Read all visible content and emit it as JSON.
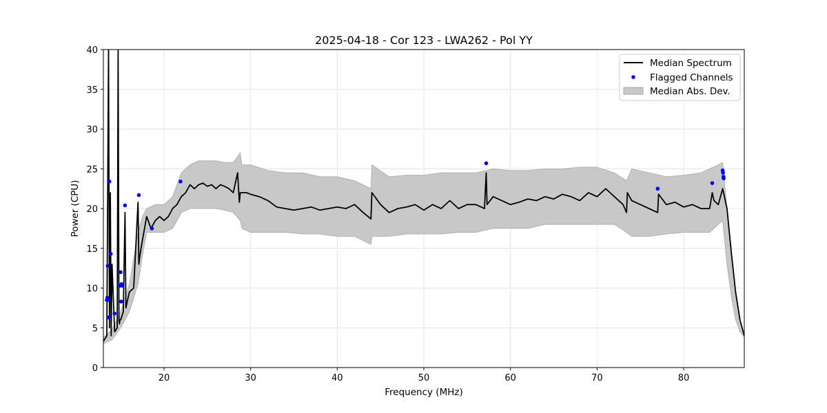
{
  "chart_data": {
    "type": "line",
    "title": "2025-04-18 - Cor 123 - LWA262 - Pol YY",
    "xlabel": "Frequency (MHz)",
    "ylabel": "Power (CPU)",
    "xlim": [
      13,
      87
    ],
    "ylim": [
      0,
      40
    ],
    "xticks": [
      20,
      30,
      40,
      50,
      60,
      70,
      80
    ],
    "yticks": [
      0,
      5,
      10,
      15,
      20,
      25,
      30,
      35,
      40
    ],
    "grid": true,
    "legend": {
      "location": "top-right",
      "entries": [
        "Median Spectrum",
        "Flagged Channels",
        "Median Abs. Dev."
      ]
    },
    "colors": {
      "median": "#000000",
      "flagged": "#0000ff",
      "mad": "#c8c8c8"
    },
    "series": [
      {
        "name": "Median Spectrum",
        "x": [
          13.0,
          13.4,
          13.6,
          13.7,
          13.8,
          13.9,
          14.0,
          14.3,
          14.6,
          14.7,
          14.8,
          14.85,
          14.9,
          15.0,
          15.3,
          15.5,
          15.6,
          15.7,
          16.0,
          16.5,
          17.0,
          17.1,
          17.2,
          17.5,
          18.0,
          18.5,
          19.0,
          19.5,
          20.0,
          20.5,
          21.0,
          21.5,
          22.0,
          22.5,
          23.0,
          23.5,
          24.0,
          24.5,
          25.0,
          25.5,
          26.0,
          26.5,
          27.0,
          27.5,
          28.0,
          28.5,
          28.7,
          28.8,
          29.5,
          30.0,
          31.0,
          32.0,
          33.0,
          34.0,
          35.0,
          36.0,
          37.0,
          38.0,
          39.0,
          40.0,
          41.0,
          42.0,
          43.0,
          43.9,
          44.0,
          45.0,
          46.0,
          47.0,
          48.0,
          49.0,
          50.0,
          51.0,
          52.0,
          53.0,
          54.0,
          55.0,
          56.0,
          57.0,
          57.2,
          57.3,
          58.0,
          59.0,
          60.0,
          61.0,
          62.0,
          63.0,
          64.0,
          65.0,
          66.0,
          67.0,
          68.0,
          69.0,
          70.0,
          71.0,
          72.0,
          73.0,
          73.4,
          73.5,
          74.0,
          75.0,
          76.0,
          77.0,
          77.1,
          78.0,
          79.0,
          80.0,
          81.0,
          82.0,
          83.0,
          83.3,
          83.5,
          84.0,
          84.5,
          85.0,
          85.5,
          86.0,
          86.5,
          87.0
        ],
        "y": [
          3.3,
          4.0,
          40.0,
          5.0,
          22.0,
          4.0,
          13.0,
          4.5,
          5.0,
          40.0,
          6.0,
          5.5,
          6.0,
          6.0,
          7.0,
          19.5,
          7.5,
          8.0,
          9.5,
          10.0,
          20.8,
          13.0,
          14.0,
          16.0,
          19.0,
          17.5,
          18.5,
          19.0,
          18.5,
          19.0,
          20.0,
          20.5,
          21.5,
          22.0,
          23.0,
          22.5,
          23.0,
          23.2,
          22.8,
          23.0,
          22.5,
          23.0,
          22.8,
          22.5,
          22.0,
          24.5,
          20.8,
          22.0,
          22.0,
          21.8,
          21.5,
          21.0,
          20.2,
          20.0,
          19.8,
          20.0,
          20.2,
          19.8,
          20.0,
          20.2,
          20.0,
          20.5,
          19.5,
          18.7,
          22.0,
          20.5,
          19.5,
          20.0,
          20.2,
          20.5,
          19.8,
          20.5,
          20.0,
          21.0,
          20.0,
          20.5,
          20.5,
          20.0,
          24.5,
          20.5,
          21.5,
          21.0,
          20.5,
          20.8,
          21.2,
          21.0,
          21.5,
          21.2,
          21.8,
          21.5,
          21.0,
          22.0,
          21.5,
          22.5,
          21.5,
          20.5,
          19.5,
          22.0,
          21.0,
          20.5,
          20.0,
          19.5,
          21.8,
          20.5,
          20.8,
          20.2,
          20.5,
          20.0,
          20.0,
          22.0,
          21.0,
          20.5,
          22.5,
          20.0,
          14.5,
          9.5,
          6.0,
          4.0
        ]
      },
      {
        "name": "Flagged Channels",
        "x": [
          13.4,
          13.45,
          13.5,
          13.55,
          13.6,
          13.7,
          13.85,
          14.3,
          14.9,
          15.0,
          15.05,
          15.1,
          15.15,
          15.5,
          17.1,
          18.6,
          21.9,
          57.2,
          77.0,
          83.3,
          84.5,
          84.55,
          84.6,
          84.62
        ],
        "y": [
          8.5,
          8.8,
          12.8,
          8.5,
          6.3,
          23.4,
          14.3,
          6.8,
          10.3,
          12.0,
          8.3,
          10.5,
          10.3,
          20.4,
          21.7,
          17.5,
          23.4,
          25.7,
          22.5,
          23.2,
          24.8,
          24.5,
          24.0,
          23.8
        ]
      },
      {
        "name": "Median Abs. Dev.",
        "x": [
          13.0,
          14.0,
          15.0,
          16.0,
          17.0,
          17.5,
          18.0,
          19.0,
          20.0,
          21.0,
          22.0,
          23.0,
          24.0,
          25.0,
          26.0,
          27.0,
          28.0,
          28.8,
          29.0,
          30.0,
          32.0,
          34.0,
          36.0,
          38.0,
          40.0,
          42.0,
          43.9,
          44.0,
          46.0,
          48.0,
          50.0,
          52.0,
          54.0,
          56.0,
          58.0,
          60.0,
          62.0,
          64.0,
          66.0,
          68.0,
          70.0,
          72.0,
          73.4,
          74.0,
          76.0,
          78.0,
          80.0,
          82.0,
          83.0,
          84.0,
          84.5,
          85.0,
          85.5,
          86.0,
          86.5,
          87.0
        ],
        "upper": [
          3.8,
          4.8,
          7.0,
          10.5,
          17.0,
          19.0,
          20.0,
          20.5,
          20.5,
          21.5,
          24.5,
          25.5,
          26.0,
          26.0,
          26.0,
          25.8,
          25.8,
          27.0,
          25.5,
          25.5,
          24.8,
          24.5,
          24.5,
          24.0,
          24.0,
          23.5,
          22.5,
          25.5,
          24.0,
          24.2,
          24.2,
          24.5,
          24.5,
          24.5,
          25.0,
          24.8,
          24.8,
          25.0,
          25.0,
          25.2,
          25.2,
          24.5,
          23.5,
          25.0,
          24.5,
          24.0,
          24.2,
          24.5,
          25.0,
          25.5,
          25.8,
          20.0,
          15.0,
          9.5,
          6.0,
          4.2
        ],
        "lower": [
          3.0,
          3.5,
          5.0,
          7.0,
          10.5,
          14.0,
          17.0,
          17.0,
          17.0,
          17.5,
          19.5,
          20.0,
          20.0,
          20.0,
          20.0,
          19.8,
          19.5,
          18.5,
          17.5,
          17.0,
          17.0,
          17.0,
          16.8,
          16.8,
          16.5,
          16.5,
          15.5,
          16.5,
          16.5,
          16.8,
          16.8,
          16.8,
          17.0,
          17.0,
          17.5,
          17.5,
          17.5,
          18.0,
          18.0,
          18.0,
          18.0,
          18.0,
          17.0,
          16.5,
          16.5,
          16.8,
          17.0,
          17.0,
          17.0,
          18.0,
          18.5,
          13.0,
          9.0,
          6.0,
          4.5,
          3.8
        ]
      }
    ]
  }
}
